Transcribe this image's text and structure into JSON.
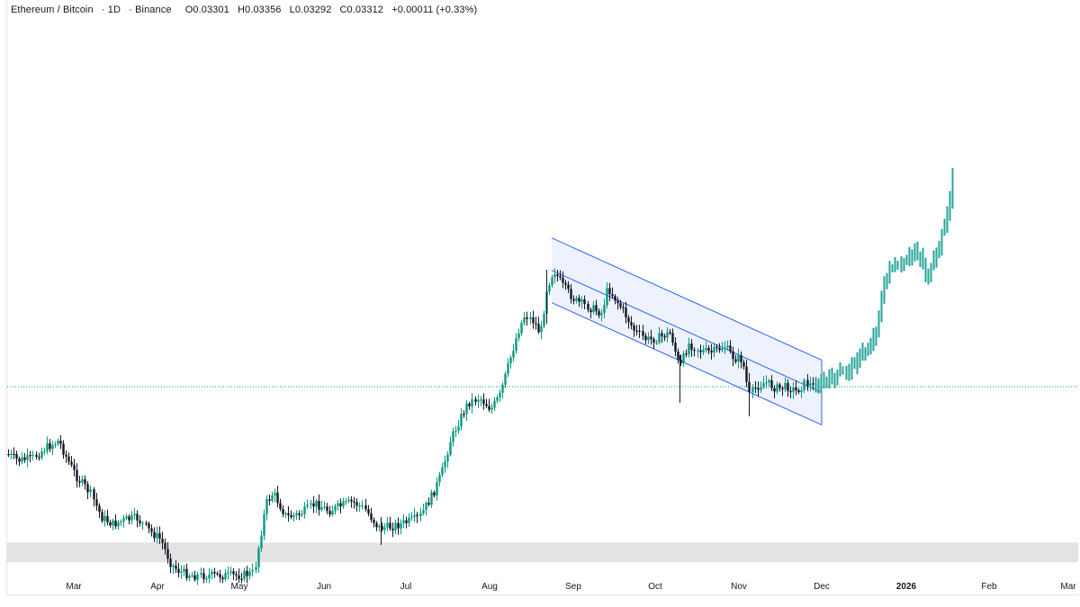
{
  "header": {
    "pair": "Ethereum / Bitcoin",
    "interval": "1D",
    "exchange": "Binance",
    "open": "O0.03301",
    "high": "H0.03356",
    "low": "L0.03292",
    "close": "C0.03312",
    "change": "+0.00011 (+0.33%)"
  },
  "colors": {
    "up": "#089981",
    "down": "#131722",
    "candle_body": "#131722",
    "projection": "#26a69a",
    "channel_line": "#2962ff",
    "channel_fill": "#eef2fd",
    "price_line": "#089981",
    "range_band": "#e3e3e3"
  },
  "chart_data": {
    "type": "candlestick",
    "x_axis": {
      "ticks": [
        {
          "label": "Mar",
          "bold": false
        },
        {
          "label": "Apr",
          "bold": false
        },
        {
          "label": "May",
          "bold": false
        },
        {
          "label": "Jun",
          "bold": false
        },
        {
          "label": "Jul",
          "bold": false
        },
        {
          "label": "Aug",
          "bold": false
        },
        {
          "label": "Sep",
          "bold": false
        },
        {
          "label": "Oct",
          "bold": false
        },
        {
          "label": "Nov",
          "bold": false
        },
        {
          "label": "Dec",
          "bold": false
        },
        {
          "label": "2026",
          "bold": true
        },
        {
          "label": "Feb",
          "bold": false
        },
        {
          "label": "Mar",
          "bold": false
        }
      ]
    },
    "y_range_estimated": [
      0.018,
      0.056
    ],
    "last_close": 0.03312,
    "historical_close_path": [
      {
        "date": "2025-02-18",
        "close": 0.0273
      },
      {
        "date": "2025-03-01",
        "close": 0.0268
      },
      {
        "date": "2025-03-05",
        "close": 0.0275
      },
      {
        "date": "2025-03-12",
        "close": 0.0252
      },
      {
        "date": "2025-03-20",
        "close": 0.0238
      },
      {
        "date": "2025-04-01",
        "close": 0.0232
      },
      {
        "date": "2025-04-08",
        "close": 0.0205
      },
      {
        "date": "2025-04-15",
        "close": 0.019
      },
      {
        "date": "2025-04-30",
        "close": 0.019
      },
      {
        "date": "2025-05-08",
        "close": 0.0213
      },
      {
        "date": "2025-05-10",
        "close": 0.0245
      },
      {
        "date": "2025-05-20",
        "close": 0.0237
      },
      {
        "date": "2025-06-01",
        "close": 0.0242
      },
      {
        "date": "2025-06-15",
        "close": 0.0238
      },
      {
        "date": "2025-06-30",
        "close": 0.023
      },
      {
        "date": "2025-07-10",
        "close": 0.0242
      },
      {
        "date": "2025-07-20",
        "close": 0.0277
      },
      {
        "date": "2025-08-01",
        "close": 0.0291
      },
      {
        "date": "2025-08-10",
        "close": 0.0333
      },
      {
        "date": "2025-08-20",
        "close": 0.0375
      },
      {
        "date": "2025-08-25",
        "close": 0.0383
      },
      {
        "date": "2025-09-10",
        "close": 0.0369
      },
      {
        "date": "2025-09-20",
        "close": 0.0358
      },
      {
        "date": "2025-10-01",
        "close": 0.0351
      },
      {
        "date": "2025-10-10",
        "close": 0.034
      },
      {
        "date": "2025-10-20",
        "close": 0.0352
      },
      {
        "date": "2025-11-01",
        "close": 0.0345
      },
      {
        "date": "2025-11-05",
        "close": 0.0328
      },
      {
        "date": "2025-11-20",
        "close": 0.033
      },
      {
        "date": "2025-12-01",
        "close": 0.0331
      }
    ],
    "projection_close_path": [
      {
        "date": "2025-12-01",
        "close": 0.0331
      },
      {
        "date": "2025-12-10",
        "close": 0.0336
      },
      {
        "date": "2025-12-20",
        "close": 0.035
      },
      {
        "date": "2025-12-27",
        "close": 0.038
      },
      {
        "date": "2026-01-03",
        "close": 0.0396
      },
      {
        "date": "2026-01-08",
        "close": 0.0398
      },
      {
        "date": "2026-01-12",
        "close": 0.039
      },
      {
        "date": "2026-01-16",
        "close": 0.0382
      },
      {
        "date": "2026-01-19",
        "close": 0.0392
      },
      {
        "date": "2026-01-24",
        "close": 0.0415
      },
      {
        "date": "2026-01-27",
        "close": 0.044
      }
    ],
    "descending_channel": {
      "start_date": "2025-08-24",
      "end_date": "2025-12-01",
      "upper_line": [
        0.0392,
        0.0331
      ],
      "middle_line": [
        0.0383,
        0.0322
      ],
      "lower_line": [
        0.0375,
        0.0314
      ]
    },
    "highlight_band": [
      0.018,
      0.019
    ]
  }
}
